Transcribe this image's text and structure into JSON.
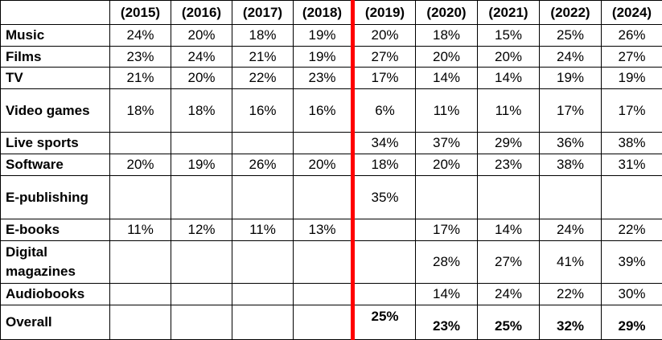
{
  "columns": [
    "(2015)",
    "(2016)",
    "(2017)",
    "(2018)",
    "(2019)",
    "(2020)",
    "(2021)",
    "(2022)",
    "(2024)"
  ],
  "rows": [
    {
      "label": "Music",
      "values": [
        "24%",
        "20%",
        "18%",
        "19%",
        "20%",
        "18%",
        "15%",
        "25%",
        "26%"
      ]
    },
    {
      "label": "Films",
      "values": [
        "23%",
        "24%",
        "21%",
        "19%",
        "27%",
        "20%",
        "20%",
        "24%",
        "27%"
      ]
    },
    {
      "label": "TV",
      "values": [
        "21%",
        "20%",
        "22%",
        "23%",
        "17%",
        "14%",
        "14%",
        "19%",
        "19%"
      ]
    },
    {
      "label": "Video games",
      "values": [
        "18%",
        "18%",
        "16%",
        "16%",
        "6%",
        "11%",
        "11%",
        "17%",
        "17%"
      ]
    },
    {
      "label": "Live sports",
      "values": [
        "",
        "",
        "",
        "",
        "34%",
        "37%",
        "29%",
        "36%",
        "38%"
      ]
    },
    {
      "label": "Software",
      "values": [
        "20%",
        "19%",
        "26%",
        "20%",
        "18%",
        "20%",
        "23%",
        "38%",
        "31%"
      ]
    },
    {
      "label": "E-publishing",
      "values": [
        "",
        "",
        "",
        "",
        "35%",
        "",
        "",
        "",
        ""
      ]
    },
    {
      "label": "E-books",
      "values": [
        "11%",
        "12%",
        "11%",
        "13%",
        "",
        "17%",
        "14%",
        "24%",
        "22%"
      ]
    },
    {
      "label": "Digital magazines",
      "values": [
        "",
        "",
        "",
        "",
        "",
        "28%",
        "27%",
        "41%",
        "39%"
      ]
    },
    {
      "label": "Audiobooks",
      "values": [
        "",
        "",
        "",
        "",
        "",
        "14%",
        "24%",
        "22%",
        "30%"
      ]
    },
    {
      "label": "Overall",
      "values": [
        "",
        "",
        "",
        "",
        "25%",
        "23%",
        "25%",
        "32%",
        "29%"
      ]
    }
  ],
  "colors": {
    "divider": "#ff0000",
    "border": "#000000",
    "text": "#000000"
  }
}
